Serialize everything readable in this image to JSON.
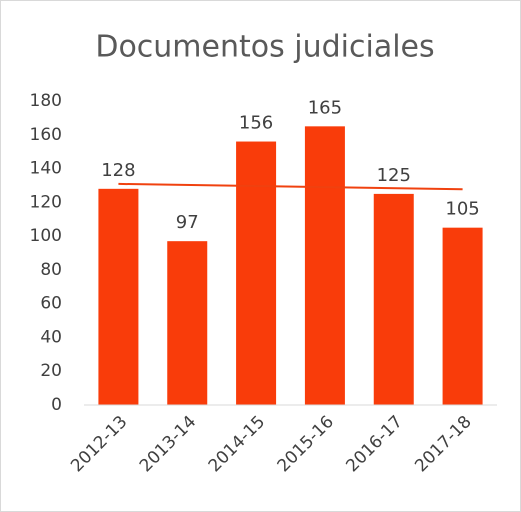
{
  "chart_data": {
    "type": "bar",
    "title": "Documentos judiciales",
    "categories": [
      "2012-13",
      "2013-14",
      "2014-15",
      "2015-16",
      "2016-17",
      "2017-18"
    ],
    "values": [
      128,
      97,
      156,
      165,
      125,
      105
    ],
    "color": "#f93c0a",
    "ylim": [
      0,
      180
    ],
    "yticks": [
      0,
      20,
      40,
      60,
      80,
      100,
      120,
      140,
      160,
      180
    ],
    "grid": false,
    "trendline": true
  }
}
